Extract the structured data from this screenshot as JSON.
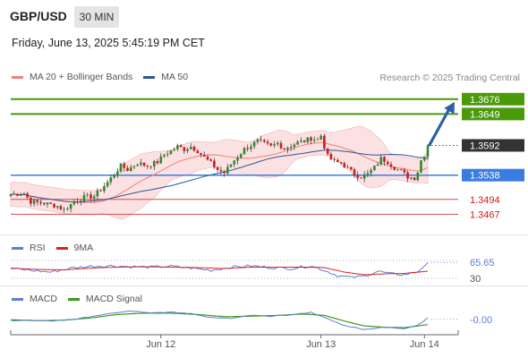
{
  "header": {
    "symbol": "GBP/USD",
    "timeframe": "30 MIN",
    "datetime": "Friday, June 13, 2025 5:45:19 PM CET",
    "credit": "Research © 2025 Trading Central"
  },
  "legend": {
    "main": [
      {
        "label": "MA 20 + Bollinger Bands",
        "color": "#f08080"
      },
      {
        "label": "MA 50",
        "color": "#2f5597"
      }
    ],
    "rsi": [
      {
        "label": "RSI",
        "color": "#5b7fd4"
      },
      {
        "label": "9MA",
        "color": "#e02020"
      }
    ],
    "macd": [
      {
        "label": "MACD",
        "color": "#5b7fd4"
      },
      {
        "label": "MACD Signal",
        "color": "#3a9a1a"
      }
    ]
  },
  "colors": {
    "up": "#2e8b2e",
    "down": "#d11a1a",
    "resistance": "#4a9a0a",
    "pivot": "#3a7de0",
    "support": "#d84a4a",
    "current": "#333333",
    "arrow": "#2f5fa8"
  },
  "chart_data": [
    {
      "type": "candlestick",
      "panel": "price",
      "ylim": [
        1.344,
        1.37
      ],
      "xlabels": [
        "Jun 12",
        "Jun 13",
        "Jun 14"
      ],
      "xlabel_positions": [
        45,
        93,
        124
      ],
      "candles_count": 126,
      "close_path": [
        [
          0,
          1.3503
        ],
        [
          4,
          1.3505
        ],
        [
          6,
          1.349
        ],
        [
          10,
          1.3487
        ],
        [
          14,
          1.3482
        ],
        [
          16,
          1.3475
        ],
        [
          19,
          1.349
        ],
        [
          22,
          1.3498
        ],
        [
          25,
          1.35
        ],
        [
          27,
          1.3512
        ],
        [
          29,
          1.3525
        ],
        [
          31,
          1.354
        ],
        [
          33,
          1.3555
        ],
        [
          35,
          1.3548
        ],
        [
          38,
          1.356
        ],
        [
          41,
          1.3555
        ],
        [
          44,
          1.3562
        ],
        [
          46,
          1.3575
        ],
        [
          48,
          1.3582
        ],
        [
          50,
          1.359
        ],
        [
          52,
          1.3585
        ],
        [
          54,
          1.359
        ],
        [
          56,
          1.3582
        ],
        [
          58,
          1.357
        ],
        [
          60,
          1.356
        ],
        [
          62,
          1.3548
        ],
        [
          64,
          1.3542
        ],
        [
          66,
          1.3558
        ],
        [
          68,
          1.3572
        ],
        [
          70,
          1.3585
        ],
        [
          72,
          1.3592
        ],
        [
          74,
          1.36
        ],
        [
          76,
          1.3595
        ],
        [
          78,
          1.359
        ],
        [
          80,
          1.3596
        ],
        [
          82,
          1.3586
        ],
        [
          84,
          1.3592
        ],
        [
          86,
          1.3597
        ],
        [
          88,
          1.36
        ],
        [
          90,
          1.3605
        ],
        [
          92,
          1.3602
        ],
        [
          93,
          1.361
        ],
        [
          94,
          1.359
        ],
        [
          95,
          1.3572
        ],
        [
          97,
          1.3562
        ],
        [
          99,
          1.356
        ],
        [
          101,
          1.355
        ],
        [
          103,
          1.354
        ],
        [
          105,
          1.3535
        ],
        [
          107,
          1.354
        ],
        [
          109,
          1.3552
        ],
        [
          111,
          1.3568
        ],
        [
          113,
          1.3562
        ],
        [
          115,
          1.3552
        ],
        [
          117,
          1.3545
        ],
        [
          119,
          1.3535
        ],
        [
          121,
          1.3533
        ],
        [
          122,
          1.3545
        ],
        [
          123,
          1.3565
        ],
        [
          124,
          1.3575
        ],
        [
          125,
          1.3592
        ]
      ],
      "levels": [
        {
          "value": "1.3676",
          "price": 1.3676,
          "kind": "resistance"
        },
        {
          "value": "1.3649",
          "price": 1.3649,
          "kind": "resistance"
        },
        {
          "value": "1.3592",
          "price": 1.3592,
          "kind": "current"
        },
        {
          "value": "1.3538",
          "price": 1.3538,
          "kind": "pivot"
        },
        {
          "value": "1.3494",
          "price": 1.3494,
          "kind": "support"
        },
        {
          "value": "1.3467",
          "price": 1.3467,
          "kind": "support"
        }
      ]
    },
    {
      "type": "line",
      "panel": "rsi",
      "series": [
        {
          "name": "RSI"
        },
        {
          "name": "9MA"
        }
      ],
      "ylim": [
        20,
        80
      ],
      "ticks": [
        "65.65",
        "30"
      ],
      "tick_values": [
        65.65,
        30
      ],
      "guide_levels": [
        70,
        30
      ],
      "rsi_path": [
        [
          0,
          52
        ],
        [
          6,
          48
        ],
        [
          12,
          44
        ],
        [
          18,
          53
        ],
        [
          24,
          57
        ],
        [
          30,
          58
        ],
        [
          36,
          56
        ],
        [
          42,
          55
        ],
        [
          48,
          57
        ],
        [
          54,
          53
        ],
        [
          60,
          48
        ],
        [
          66,
          55
        ],
        [
          72,
          58
        ],
        [
          78,
          54
        ],
        [
          84,
          52
        ],
        [
          90,
          58
        ],
        [
          94,
          48
        ],
        [
          98,
          36
        ],
        [
          102,
          32
        ],
        [
          106,
          35
        ],
        [
          110,
          46
        ],
        [
          114,
          40
        ],
        [
          118,
          38
        ],
        [
          122,
          45
        ],
        [
          125,
          65.65
        ]
      ],
      "ma_path": [
        [
          0,
          53
        ],
        [
          8,
          50
        ],
        [
          16,
          49
        ],
        [
          24,
          53
        ],
        [
          32,
          55
        ],
        [
          40,
          56
        ],
        [
          48,
          55
        ],
        [
          56,
          54
        ],
        [
          64,
          52
        ],
        [
          72,
          55
        ],
        [
          80,
          55
        ],
        [
          88,
          55
        ],
        [
          94,
          54
        ],
        [
          100,
          44
        ],
        [
          106,
          38
        ],
        [
          112,
          40
        ],
        [
          118,
          41
        ],
        [
          125,
          46
        ]
      ]
    },
    {
      "type": "line",
      "panel": "macd",
      "series": [
        {
          "name": "MACD"
        },
        {
          "name": "MACD Signal"
        }
      ],
      "ylim": [
        -0.0035,
        0.003
      ],
      "ticks": [
        "-0.00"
      ],
      "tick_values": [
        0.0
      ],
      "macd_path": [
        [
          0,
          -0.0003
        ],
        [
          6,
          -0.0002
        ],
        [
          12,
          -0.0004
        ],
        [
          18,
          -0.0001
        ],
        [
          24,
          0.0006
        ],
        [
          30,
          0.0014
        ],
        [
          36,
          0.0019
        ],
        [
          42,
          0.0015
        ],
        [
          48,
          0.0016
        ],
        [
          54,
          0.0013
        ],
        [
          60,
          0.0004
        ],
        [
          66,
          0.0002
        ],
        [
          72,
          0.0009
        ],
        [
          78,
          0.0007
        ],
        [
          84,
          0.001
        ],
        [
          90,
          0.0016
        ],
        [
          94,
          0.0004
        ],
        [
          100,
          -0.0014
        ],
        [
          106,
          -0.0023
        ],
        [
          112,
          -0.0018
        ],
        [
          118,
          -0.0021
        ],
        [
          122,
          -0.0013
        ],
        [
          125,
          0.0003
        ]
      ],
      "signal_path": [
        [
          0,
          -0.0001
        ],
        [
          8,
          -0.0003
        ],
        [
          16,
          -0.0002
        ],
        [
          24,
          0.0003
        ],
        [
          32,
          0.0011
        ],
        [
          40,
          0.0014
        ],
        [
          48,
          0.0014
        ],
        [
          56,
          0.0011
        ],
        [
          64,
          0.0006
        ],
        [
          72,
          0.0007
        ],
        [
          80,
          0.0009
        ],
        [
          88,
          0.0012
        ],
        [
          94,
          0.0009
        ],
        [
          100,
          -0.0004
        ],
        [
          106,
          -0.0015
        ],
        [
          112,
          -0.0018
        ],
        [
          118,
          -0.0019
        ],
        [
          125,
          -0.0012
        ]
      ]
    }
  ]
}
